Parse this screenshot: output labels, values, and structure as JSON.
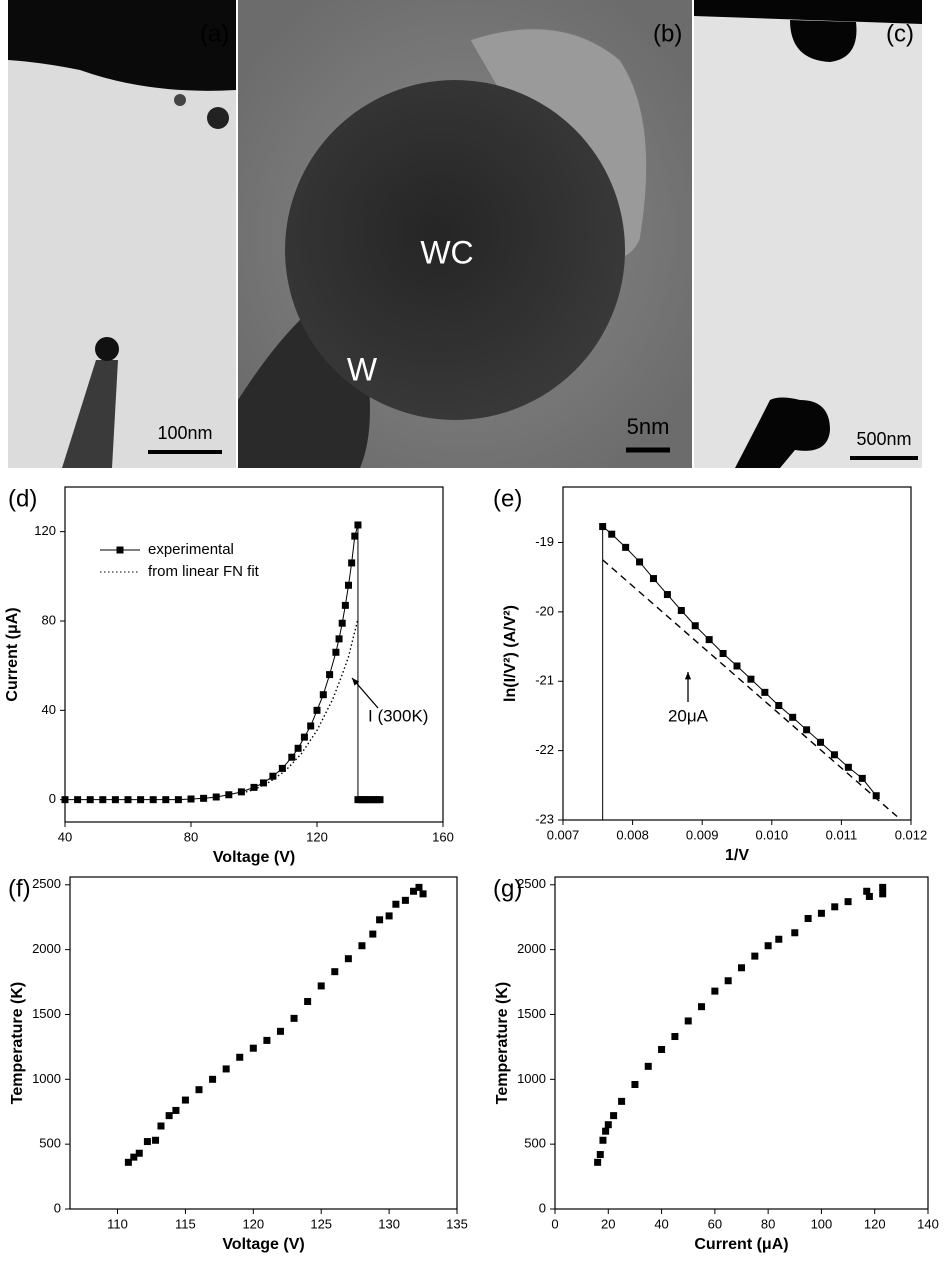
{
  "images": [
    {
      "label": "(a)",
      "scale_bar": "100nm"
    },
    {
      "label": "(b)",
      "scale_bar": "5nm",
      "annotations": [
        "WC",
        "W"
      ]
    },
    {
      "label": "(c)",
      "scale_bar": "500nm"
    }
  ],
  "chart_data": [
    {
      "type": "line",
      "panel_label": "(d)",
      "xlabel": "Voltage (V)",
      "ylabel": "Current (μA)",
      "xlim": [
        40,
        160
      ],
      "xticks": [
        40,
        80,
        120,
        160
      ],
      "ylim": [
        -10,
        140
      ],
      "yticks": [
        0,
        40,
        80,
        120
      ],
      "legend": "upper left",
      "series": [
        {
          "name": "experimental",
          "color": "#000000",
          "marker": "square",
          "line_style": "solid",
          "x": [
            40,
            44,
            48,
            52,
            56,
            60,
            64,
            68,
            72,
            76,
            80,
            84,
            88,
            92,
            96,
            100,
            103,
            106,
            109,
            112,
            114,
            116,
            118,
            120,
            122,
            124,
            126,
            127,
            128,
            129,
            130,
            131,
            132,
            133,
            133,
            134,
            135,
            136,
            137,
            138,
            139,
            140
          ],
          "values": [
            0,
            0,
            0,
            0,
            0,
            0,
            0,
            0,
            0,
            0,
            0.3,
            0.6,
            1.2,
            2.2,
            3.5,
            5.5,
            7.5,
            10.5,
            14,
            19,
            23,
            28,
            33,
            40,
            47,
            56,
            66,
            72,
            79,
            87,
            96,
            106,
            118,
            123,
            0,
            0,
            0,
            0,
            0,
            0,
            0,
            0
          ]
        },
        {
          "name": "from linear FN fit",
          "color": "#000000",
          "marker": "none",
          "line_style": "dotted",
          "x": [
            95,
            100,
            105,
            110,
            115,
            120,
            125,
            128,
            130,
            133
          ],
          "values": [
            2.5,
            4.5,
            8,
            13,
            20.5,
            31,
            45,
            56,
            64,
            81
          ]
        }
      ],
      "annotations": [
        {
          "text": "I (300K)"
        }
      ]
    },
    {
      "type": "line",
      "panel_label": "(e)",
      "xlabel": "1/V",
      "ylabel": "ln(I/V²)  (A/V²)",
      "xlim": [
        0.007,
        0.012
      ],
      "xticks": [
        0.007,
        0.008,
        0.009,
        {
          "value": 0.01,
          "label": "0.010"
        },
        0.011,
        0.012
      ],
      "ylim": [
        -23,
        -18.2
      ],
      "yticks": [
        -23,
        -22,
        -21,
        -20,
        -19
      ],
      "series": [
        {
          "color": "#000000",
          "marker": "square",
          "line_style": "solid",
          "x": [
            0.00757,
            0.0077,
            0.0079,
            0.0081,
            0.0083,
            0.0085,
            0.0087,
            0.0089,
            0.0091,
            0.0093,
            0.0095,
            0.0097,
            0.0099,
            0.0101,
            0.0103,
            0.0105,
            0.0107,
            0.0109,
            0.0111,
            0.0113,
            0.0115
          ],
          "values": [
            -18.77,
            -18.88,
            -19.07,
            -19.28,
            -19.52,
            -19.75,
            -19.98,
            -20.2,
            -20.4,
            -20.6,
            -20.78,
            -20.97,
            -21.16,
            -21.35,
            -21.52,
            -21.7,
            -21.88,
            -22.06,
            -22.24,
            -22.4,
            -22.65
          ]
        },
        {
          "color": "#000000",
          "marker": "none",
          "line_style": "solid",
          "x": [
            0.00757,
            0.00757
          ],
          "values": [
            -23,
            -18.77
          ]
        },
        {
          "color": "#000000",
          "marker": "none",
          "line_style": "dashed",
          "x": [
            0.00757,
            0.0118
          ],
          "values": [
            -19.25,
            -22.95
          ]
        }
      ],
      "annotations": [
        {
          "text": "20μA"
        }
      ]
    },
    {
      "type": "scatter",
      "panel_label": "(f)",
      "xlabel": "Voltage (V)",
      "ylabel": "Temperature (K)",
      "xlim": [
        106.5,
        135
      ],
      "xticks": [
        110,
        115,
        120,
        125,
        130,
        135
      ],
      "ylim": [
        0,
        2560
      ],
      "yticks": [
        0,
        500,
        1000,
        1500,
        2000,
        2500
      ],
      "series": [
        {
          "color": "#000000",
          "marker": "square",
          "x": [
            110.8,
            111.2,
            111.6,
            112.2,
            112.8,
            113.2,
            113.8,
            114.3,
            115,
            116,
            117,
            118,
            119,
            120,
            121,
            122,
            123,
            124,
            125,
            126,
            127,
            128,
            128.8,
            129.3,
            130,
            130.5,
            131.2,
            131.8,
            132.2,
            132.5
          ],
          "values": [
            360,
            400,
            430,
            520,
            530,
            640,
            720,
            760,
            840,
            920,
            1000,
            1080,
            1170,
            1240,
            1300,
            1370,
            1470,
            1600,
            1720,
            1830,
            1930,
            2030,
            2120,
            2230,
            2260,
            2350,
            2380,
            2450,
            2480,
            2430
          ]
        }
      ]
    },
    {
      "type": "scatter",
      "panel_label": "(g)",
      "xlabel": "Current (μA)",
      "ylabel": "Temperature (K)",
      "xlim": [
        0,
        140
      ],
      "xticks": [
        0,
        20,
        40,
        60,
        80,
        100,
        120,
        140
      ],
      "ylim": [
        0,
        2560
      ],
      "yticks": [
        0,
        500,
        1000,
        1500,
        2000,
        2500
      ],
      "series": [
        {
          "color": "#000000",
          "marker": "square",
          "x": [
            16,
            17,
            18,
            19,
            20,
            22,
            25,
            30,
            35,
            40,
            45,
            50,
            55,
            60,
            65,
            70,
            75,
            80,
            84,
            90,
            95,
            100,
            105,
            110,
            117,
            118,
            123,
            123
          ],
          "values": [
            360,
            420,
            530,
            600,
            650,
            720,
            830,
            960,
            1100,
            1230,
            1330,
            1450,
            1560,
            1680,
            1760,
            1860,
            1950,
            2030,
            2080,
            2130,
            2240,
            2280,
            2330,
            2370,
            2450,
            2410,
            2480,
            2430
          ]
        }
      ]
    }
  ]
}
